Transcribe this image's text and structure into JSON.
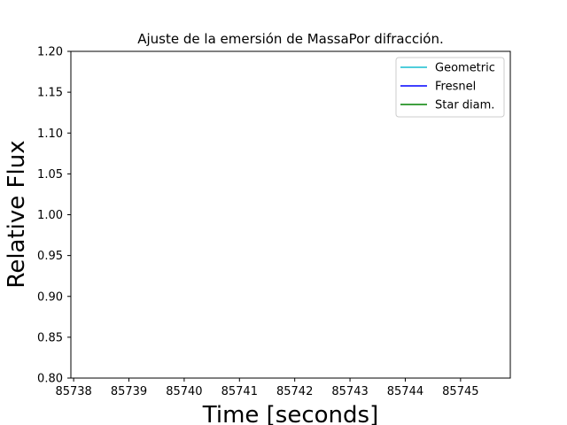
{
  "chart_data": {
    "type": "line",
    "title": "Ajuste de la emersión de MassaPor difracción.",
    "xlabel": "Time [seconds]",
    "ylabel": "Relative Flux",
    "xlim": [
      85737.95,
      85745.9
    ],
    "ylim": [
      0.8,
      1.2
    ],
    "xticks": [
      85738,
      85739,
      85740,
      85741,
      85742,
      85743,
      85744,
      85745
    ],
    "yticks": [
      0.8,
      0.85,
      0.9,
      0.95,
      1.0,
      1.05,
      1.1,
      1.15,
      1.2
    ],
    "ytick_labels": [
      "0.80",
      "0.85",
      "0.90",
      "0.95",
      "1.00",
      "1.05",
      "1.10",
      "1.15",
      "1.20"
    ],
    "grid": false,
    "legend_position": "top-right",
    "series": [
      {
        "name": "Geometric",
        "color": "#17becf",
        "x": [],
        "y": []
      },
      {
        "name": "Fresnel",
        "color": "#0000ff",
        "x": [],
        "y": []
      },
      {
        "name": "Star diam.",
        "color": "#008000",
        "x": [],
        "y": []
      }
    ]
  }
}
